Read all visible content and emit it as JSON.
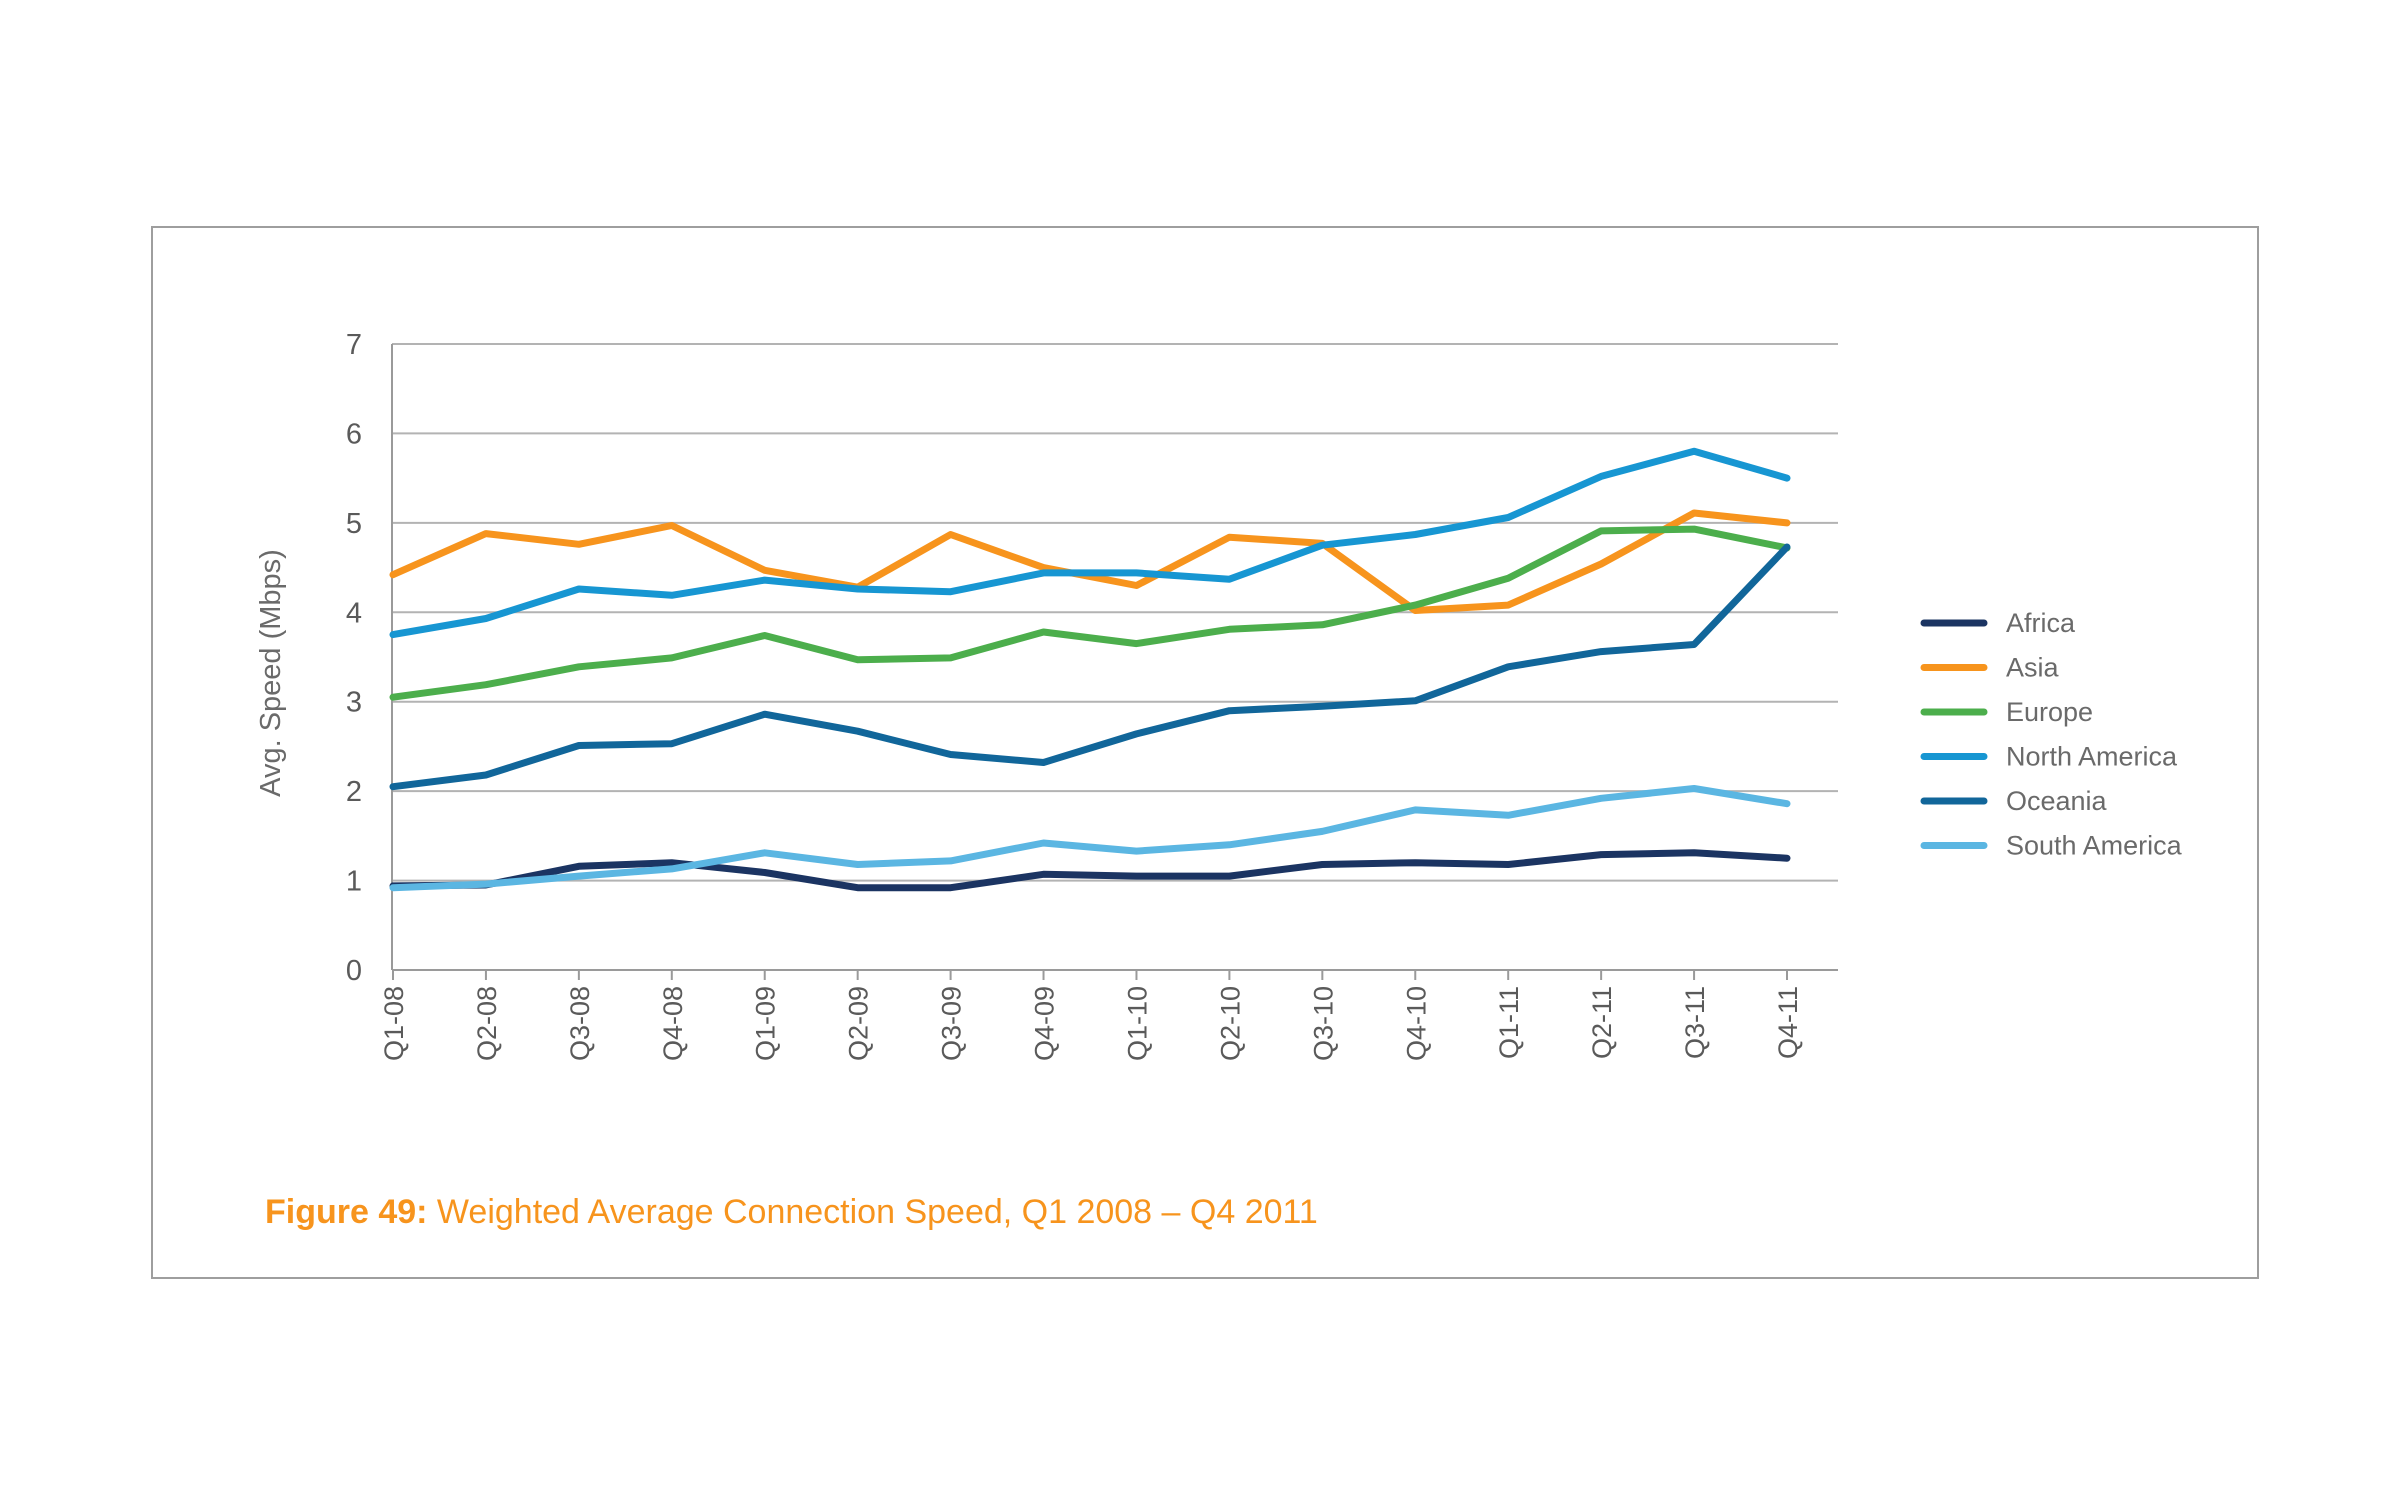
{
  "caption": {
    "figure_label": "Figure 49:",
    "text": " Weighted Average Connection Speed, Q1 2008 – Q4 2011"
  },
  "chart_data": {
    "type": "line",
    "title": "",
    "xlabel": "",
    "ylabel": "Avg. Speed (Mbps)",
    "ylim": [
      0,
      7
    ],
    "yticks": [
      0,
      1,
      2,
      3,
      4,
      5,
      6,
      7
    ],
    "grid": "horizontal",
    "legend_position": "right",
    "categories": [
      "Q1-08",
      "Q2-08",
      "Q3-08",
      "Q4-08",
      "Q1-09",
      "Q2-09",
      "Q3-09",
      "Q4-09",
      "Q1-10",
      "Q2-10",
      "Q3-10",
      "Q4-10",
      "Q1-11",
      "Q2-11",
      "Q3-11",
      "Q4-11"
    ],
    "series": [
      {
        "name": "Africa",
        "color": "#1b3462",
        "values": [
          0.94,
          0.95,
          1.16,
          1.2,
          1.09,
          0.92,
          0.92,
          1.07,
          1.05,
          1.05,
          1.18,
          1.2,
          1.18,
          1.29,
          1.31,
          1.25
        ]
      },
      {
        "name": "Asia",
        "color": "#f7941d",
        "values": [
          4.42,
          4.88,
          4.76,
          4.97,
          4.47,
          4.28,
          4.87,
          4.5,
          4.3,
          4.84,
          4.77,
          4.02,
          4.08,
          4.54,
          5.11,
          5.0
        ]
      },
      {
        "name": "Europe",
        "color": "#4cae4c",
        "values": [
          3.05,
          3.19,
          3.39,
          3.49,
          3.74,
          3.47,
          3.49,
          3.78,
          3.65,
          3.81,
          3.86,
          4.08,
          4.38,
          4.91,
          4.93,
          4.72
        ]
      },
      {
        "name": "North America",
        "color": "#1796d2",
        "values": [
          3.75,
          3.93,
          4.26,
          4.19,
          4.36,
          4.26,
          4.23,
          4.44,
          4.44,
          4.37,
          4.75,
          4.87,
          5.06,
          5.52,
          5.8,
          5.5
        ]
      },
      {
        "name": "Oceania",
        "color": "#11669a",
        "values": [
          2.05,
          2.18,
          2.51,
          2.53,
          2.86,
          2.67,
          2.41,
          2.32,
          2.64,
          2.9,
          2.95,
          3.01,
          3.39,
          3.56,
          3.64,
          4.73
        ]
      },
      {
        "name": "South America",
        "color": "#5bb6e2",
        "values": [
          0.92,
          0.96,
          1.05,
          1.13,
          1.31,
          1.18,
          1.22,
          1.42,
          1.33,
          1.4,
          1.55,
          1.79,
          1.73,
          1.92,
          2.03,
          1.86
        ]
      }
    ]
  }
}
